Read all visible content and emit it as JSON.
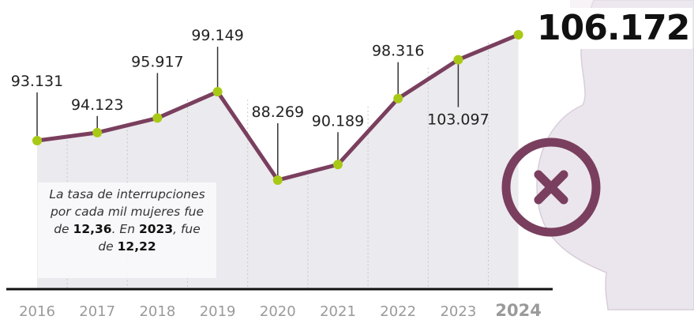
{
  "chart_data": {
    "type": "line",
    "categories": [
      "2016",
      "2017",
      "2018",
      "2019",
      "2020",
      "2021",
      "2022",
      "2023",
      "2024"
    ],
    "values": [
      93131,
      94123,
      95917,
      99149,
      88269,
      90189,
      98316,
      103097,
      106172
    ],
    "labels": [
      "93.131",
      "94.123",
      "95.917",
      "99.149",
      "88.269",
      "90.189",
      "98.316",
      "103.097",
      "106.172"
    ],
    "highlight_category": "2024",
    "ylim": [
      88269,
      106172
    ],
    "grid": "vertical-dotted",
    "colors": {
      "line": "#7a3f5e",
      "marker": "#a8c916",
      "area": "#ebeaee",
      "axis": "#111111",
      "tick": "#9a9a9a"
    }
  },
  "note": {
    "line1": "La tasa de interrupciones",
    "line2": "por cada mil mujeres fue",
    "pre3": "de ",
    "value1": "12,36",
    "mid3": ". En ",
    "year": "2023",
    "post3": ", fue",
    "pre4": "de ",
    "value2": "12,22"
  },
  "icon": "cancel-x-circle-icon"
}
